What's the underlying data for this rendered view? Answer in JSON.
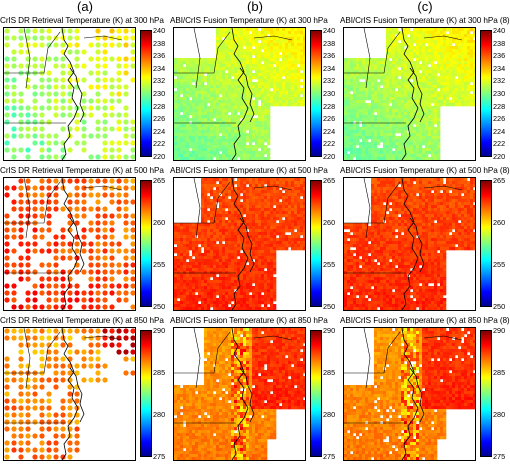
{
  "columns": [
    "(a)",
    "(b)",
    "(c)"
  ],
  "panels": [
    {
      "title": "CrIS DR Retrieval Temperature (K) at 300 hPa",
      "ticks": [
        "240",
        "238",
        "236",
        "234",
        "232",
        "230",
        "228",
        "226",
        "224",
        "222",
        "220"
      ],
      "vmin": 220,
      "vmax": 240,
      "source": "dr",
      "level": 300
    },
    {
      "title": "ABI/CrIS Fusion Temperature (K) at 300 hPa",
      "ticks": [
        "240",
        "238",
        "236",
        "234",
        "232",
        "230",
        "228",
        "226",
        "224",
        "222",
        "220"
      ],
      "vmin": 220,
      "vmax": 240,
      "source": "fusion",
      "level": 300
    },
    {
      "title": "ABI/CrIS Fusion Temperature (K) at 300 hPa (8)",
      "ticks": [
        "240",
        "238",
        "236",
        "234",
        "232",
        "230",
        "228",
        "226",
        "224",
        "222",
        "220"
      ],
      "vmin": 220,
      "vmax": 240,
      "source": "fusion8",
      "level": 300
    },
    {
      "title": "CrIS DR Retrieval Temperature (K) at 500 hPa",
      "ticks": [
        "265",
        "260",
        "255",
        "250"
      ],
      "vmin": 250,
      "vmax": 265,
      "source": "dr",
      "level": 500
    },
    {
      "title": "ABI/CrIS Fusion Temperature (K) at 500 hPa",
      "ticks": [
        "265",
        "260",
        "255",
        "250"
      ],
      "vmin": 250,
      "vmax": 265,
      "source": "fusion",
      "level": 500
    },
    {
      "title": "ABI/CrIS Fusion Temperature (K) at 500 hPa (8)",
      "ticks": [
        "265",
        "260",
        "255",
        "250"
      ],
      "vmin": 250,
      "vmax": 265,
      "source": "fusion8",
      "level": 500
    },
    {
      "title": "CrIS DR Retrieval Temperature (K) at 850 hPa",
      "ticks": [
        "290",
        "285",
        "280",
        "275"
      ],
      "vmin": 275,
      "vmax": 290,
      "source": "dr",
      "level": 850
    },
    {
      "title": "ABI/CrIS Fusion Temperature (K) at 850 hPa",
      "ticks": [
        "290",
        "285",
        "280",
        "275"
      ],
      "vmin": 275,
      "vmax": 290,
      "source": "fusion",
      "level": 850
    },
    {
      "title": "ABI/CrIS Fusion Temperature (K) at 850 hPa (8)",
      "ticks": [
        "290",
        "285",
        "280",
        "275"
      ],
      "vmin": 275,
      "vmax": 290,
      "source": "fusion8",
      "level": 850
    }
  ],
  "colormap": [
    "#00008f",
    "#0000ff",
    "#0080ff",
    "#00ffff",
    "#80ff80",
    "#ffff00",
    "#ff8000",
    "#ff0000",
    "#800000"
  ]
}
